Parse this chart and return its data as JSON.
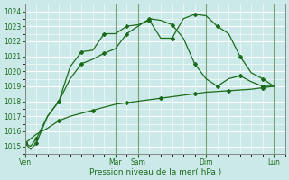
{
  "xlabel": "Pression niveau de la mer( hPa )",
  "ylim": [
    1014.5,
    1024.5
  ],
  "yticks": [
    1015,
    1016,
    1017,
    1018,
    1019,
    1020,
    1021,
    1022,
    1023,
    1024
  ],
  "bg_color": "#cce9e9",
  "grid_color": "#ffffff",
  "line_color": "#1a6b1a",
  "xtick_labels": [
    "Ven",
    "Mar",
    "Sam",
    "Dim",
    "Lun"
  ],
  "xtick_positions": [
    0,
    4,
    5,
    8,
    11
  ],
  "series1_x": [
    0,
    0.25,
    0.5,
    1.0,
    1.5,
    2.0,
    2.5,
    3.0,
    3.5,
    4.0,
    4.5,
    5.0,
    5.5,
    6.0,
    6.5,
    7.0,
    7.5,
    8.0,
    8.5,
    9.0,
    9.5,
    10.0,
    10.5,
    11.0
  ],
  "series1_y": [
    1015.2,
    1014.8,
    1015.2,
    1017.0,
    1018.0,
    1020.3,
    1021.3,
    1021.4,
    1022.5,
    1022.5,
    1023.0,
    1023.1,
    1023.4,
    1022.2,
    1022.2,
    1023.5,
    1023.8,
    1023.7,
    1023.0,
    1022.5,
    1021.0,
    1019.9,
    1019.5,
    1019.0
  ],
  "series2_x": [
    0,
    0.25,
    0.5,
    1.0,
    1.5,
    2.0,
    2.5,
    3.0,
    3.5,
    4.0,
    4.5,
    5.0,
    5.5,
    6.0,
    6.5,
    7.0,
    7.5,
    8.0,
    8.5,
    9.0,
    9.5,
    10.0,
    10.5,
    11.0
  ],
  "series2_y": [
    1015.2,
    1015.0,
    1015.5,
    1017.0,
    1018.0,
    1019.5,
    1020.5,
    1020.8,
    1021.2,
    1021.5,
    1022.5,
    1023.0,
    1023.5,
    1023.4,
    1023.1,
    1022.2,
    1020.5,
    1019.5,
    1019.0,
    1019.5,
    1019.7,
    1019.3,
    1019.0,
    1019.0
  ],
  "series3_x": [
    0,
    0.5,
    1.0,
    1.5,
    2.0,
    2.5,
    3.0,
    3.5,
    4.0,
    4.5,
    5.0,
    5.5,
    6.0,
    6.5,
    7.0,
    7.5,
    8.0,
    8.5,
    9.0,
    9.5,
    10.0,
    10.5,
    11.0
  ],
  "series3_y": [
    1015.2,
    1015.8,
    1016.2,
    1016.7,
    1017.0,
    1017.2,
    1017.4,
    1017.6,
    1017.8,
    1017.9,
    1018.0,
    1018.1,
    1018.2,
    1018.3,
    1018.4,
    1018.5,
    1018.6,
    1018.65,
    1018.7,
    1018.75,
    1018.8,
    1018.9,
    1019.0
  ],
  "vlines": [
    0,
    4,
    5,
    8,
    11
  ]
}
